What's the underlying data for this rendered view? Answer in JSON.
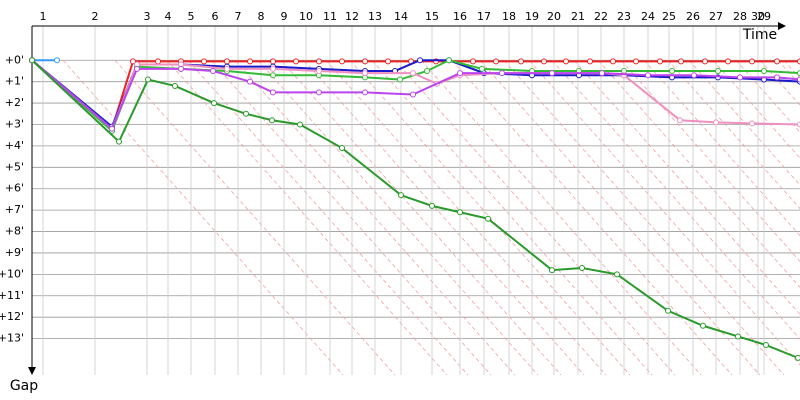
{
  "chart_data": {
    "type": "line",
    "x_label": "Time",
    "y_label": "Gap",
    "xlim": [
      0,
      768
    ],
    "ylim": [
      -1.6,
      14.7
    ],
    "y_inverted": true,
    "grid": true,
    "xticks": [
      {
        "value": 11,
        "label": "1"
      },
      {
        "value": 63,
        "label": "2"
      },
      {
        "value": 115,
        "label": "3"
      },
      {
        "value": 136,
        "label": "4"
      },
      {
        "value": 159,
        "label": "5"
      },
      {
        "value": 183,
        "label": "6"
      },
      {
        "value": 206,
        "label": "7"
      },
      {
        "value": 229,
        "label": "8"
      },
      {
        "value": 252,
        "label": "9"
      },
      {
        "value": 274,
        "label": "10"
      },
      {
        "value": 298,
        "label": "11"
      },
      {
        "value": 320,
        "label": "12"
      },
      {
        "value": 343,
        "label": "13"
      },
      {
        "value": 369,
        "label": "14"
      },
      {
        "value": 400,
        "label": "15"
      },
      {
        "value": 428,
        "label": "16"
      },
      {
        "value": 452,
        "label": "17"
      },
      {
        "value": 477,
        "label": "18"
      },
      {
        "value": 500,
        "label": "19"
      },
      {
        "value": 522,
        "label": "20"
      },
      {
        "value": 546,
        "label": "21"
      },
      {
        "value": 569,
        "label": "22"
      },
      {
        "value": 592,
        "label": "23"
      },
      {
        "value": 616,
        "label": "24"
      },
      {
        "value": 637,
        "label": "25"
      },
      {
        "value": 661,
        "label": "26"
      },
      {
        "value": 684,
        "label": "27"
      },
      {
        "value": 708,
        "label": "28"
      },
      {
        "value": 726,
        "label": "30"
      },
      {
        "value": 732,
        "label": "29"
      }
    ],
    "yticks": [
      {
        "value": 0,
        "label": "+0'"
      },
      {
        "value": 1,
        "label": "+1'"
      },
      {
        "value": 2,
        "label": "+2'"
      },
      {
        "value": 3,
        "label": "+3'"
      },
      {
        "value": 4,
        "label": "+4'"
      },
      {
        "value": 5,
        "label": "+5'"
      },
      {
        "value": 6,
        "label": "+6'"
      },
      {
        "value": 7,
        "label": "+7'"
      },
      {
        "value": 8,
        "label": "+8'"
      },
      {
        "value": 9,
        "label": "+9'"
      },
      {
        "value": 10,
        "label": "+10'"
      },
      {
        "value": 11,
        "label": "+11'"
      },
      {
        "value": 12,
        "label": "+12'"
      },
      {
        "value": 13,
        "label": "+13'"
      }
    ],
    "series": [
      {
        "color": "#3399ff",
        "x": [
          0,
          25
        ],
        "values": [
          0,
          0
        ]
      },
      {
        "color": "#ee2222",
        "x": [
          0,
          80,
          101,
          126,
          149,
          172,
          195,
          218,
          241,
          264,
          287,
          310,
          333,
          356,
          379,
          404,
          441,
          464,
          489,
          512,
          534,
          558,
          581,
          604,
          628,
          649,
          673,
          696,
          720,
          745,
          768
        ],
        "values": [
          0,
          3.2,
          0.05,
          0.05,
          0.05,
          0.05,
          0.05,
          0.05,
          0.05,
          0.05,
          0.05,
          0.05,
          0.05,
          0.05,
          0.05,
          0.05,
          0.05,
          0.05,
          0.05,
          0.05,
          0.05,
          0.05,
          0.05,
          0.05,
          0.05,
          0.05,
          0.05,
          0.05,
          0.05,
          0.05,
          0.05
        ]
      },
      {
        "color": "#1a1acc",
        "x": [
          0,
          80,
          105,
          149,
          195,
          241,
          287,
          333,
          363,
          388,
          417,
          452,
          500,
          547,
          592,
          640,
          686,
          732,
          768
        ],
        "values": [
          0,
          3.1,
          0.2,
          0.2,
          0.3,
          0.3,
          0.4,
          0.5,
          0.5,
          0,
          0,
          0.6,
          0.7,
          0.7,
          0.7,
          0.8,
          0.8,
          0.9,
          1.0
        ]
      },
      {
        "color": "#33bb33",
        "x": [
          0,
          80,
          105,
          149,
          195,
          241,
          287,
          333,
          368,
          395,
          417,
          450,
          500,
          547,
          592,
          640,
          686,
          732,
          768
        ],
        "values": [
          0,
          3.3,
          0.3,
          0.4,
          0.5,
          0.7,
          0.7,
          0.8,
          0.9,
          0.5,
          0,
          0.4,
          0.5,
          0.5,
          0.5,
          0.5,
          0.5,
          0.5,
          0.6
        ]
      },
      {
        "color": "#f090c0",
        "x": [
          0,
          80,
          105,
          149,
          195,
          241,
          287,
          333,
          381,
          405,
          428,
          470,
          520,
          570,
          592,
          648,
          684,
          720,
          768
        ],
        "values": [
          0,
          3.2,
          0.2,
          0.2,
          0.4,
          0.4,
          0.5,
          0.6,
          0.6,
          1.1,
          0.7,
          0.6,
          0.6,
          0.6,
          0.7,
          2.8,
          2.9,
          2.95,
          3.0
        ]
      },
      {
        "color": "#bb44ee",
        "x": [
          0,
          80,
          105,
          149,
          181,
          218,
          241,
          287,
          333,
          381,
          428,
          470,
          520,
          570,
          616,
          662,
          708,
          745,
          768
        ],
        "values": [
          0,
          3.2,
          0.4,
          0.4,
          0.5,
          1.0,
          1.5,
          1.5,
          1.5,
          1.6,
          0.6,
          0.6,
          0.6,
          0.6,
          0.7,
          0.7,
          0.8,
          0.8,
          0.9
        ]
      },
      {
        "color": "#2a9a2a",
        "x": [
          0,
          87,
          116,
          143,
          182,
          214,
          240,
          268,
          310,
          369,
          400,
          428,
          456,
          520,
          550,
          585,
          636,
          671,
          706,
          734,
          766
        ],
        "values": [
          0,
          3.8,
          0.9,
          1.2,
          2.0,
          2.5,
          2.8,
          3.0,
          4.1,
          6.3,
          6.8,
          7.1,
          7.4,
          9.8,
          9.7,
          10.0,
          11.7,
          12.4,
          12.9,
          13.3,
          13.9
        ]
      }
    ]
  }
}
